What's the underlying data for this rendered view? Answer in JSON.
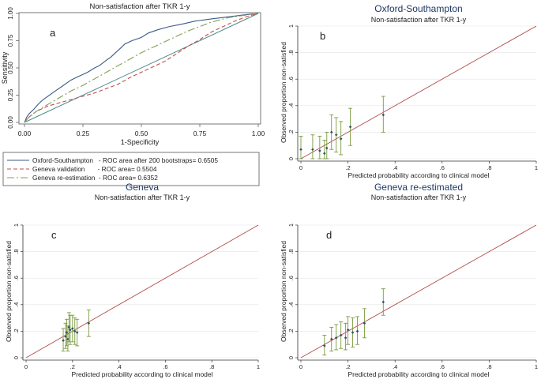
{
  "chart_data": [
    {
      "id": "a",
      "type": "line",
      "panel_label": "a",
      "title": "Non-satisfaction after TKR 1-y",
      "xlabel": "1-Specificity",
      "ylabel": "Sensitivity",
      "xlim": [
        0,
        1
      ],
      "ylim": [
        0,
        1
      ],
      "xticks": [
        0,
        0.25,
        0.5,
        0.75,
        1
      ],
      "xtick_labels": [
        "0.00",
        "0.25",
        "0.50",
        "0.75",
        "1.00"
      ],
      "yticks": [
        0,
        0.25,
        0.5,
        0.75,
        1
      ],
      "ytick_labels": [
        "0.00",
        "0.25",
        "0.50",
        "0.75",
        "1.00"
      ],
      "reference_line": [
        [
          0,
          0
        ],
        [
          1,
          1
        ]
      ],
      "series": [
        {
          "name": "Oxford-Southampton",
          "legend_label": "Oxford-Southampton   - ROC area after 200 bootstraps= 0.6505",
          "color": "#3d5a85",
          "dash": "solid",
          "points": [
            [
              0,
              0
            ],
            [
              0.01,
              0.05
            ],
            [
              0.02,
              0.08
            ],
            [
              0.04,
              0.12
            ],
            [
              0.06,
              0.17
            ],
            [
              0.08,
              0.21
            ],
            [
              0.1,
              0.24
            ],
            [
              0.12,
              0.27
            ],
            [
              0.14,
              0.3
            ],
            [
              0.16,
              0.33
            ],
            [
              0.18,
              0.36
            ],
            [
              0.2,
              0.39
            ],
            [
              0.22,
              0.41
            ],
            [
              0.25,
              0.44
            ],
            [
              0.27,
              0.46
            ],
            [
              0.3,
              0.5
            ],
            [
              0.32,
              0.52
            ],
            [
              0.35,
              0.57
            ],
            [
              0.37,
              0.6
            ],
            [
              0.39,
              0.64
            ],
            [
              0.41,
              0.68
            ],
            [
              0.43,
              0.72
            ],
            [
              0.46,
              0.75
            ],
            [
              0.5,
              0.78
            ],
            [
              0.53,
              0.82
            ],
            [
              0.57,
              0.85
            ],
            [
              0.62,
              0.88
            ],
            [
              0.67,
              0.9
            ],
            [
              0.73,
              0.93
            ],
            [
              0.8,
              0.95
            ],
            [
              0.88,
              0.97
            ],
            [
              0.95,
              0.99
            ],
            [
              1,
              1
            ]
          ]
        },
        {
          "name": "Geneva validation",
          "legend_label": "Geneva validation       - ROC area= 0.5504",
          "color": "#c0504d",
          "dash": "5,3",
          "points": [
            [
              0,
              0
            ],
            [
              0.02,
              0.05
            ],
            [
              0.05,
              0.1
            ],
            [
              0.1,
              0.15
            ],
            [
              0.15,
              0.18
            ],
            [
              0.2,
              0.21
            ],
            [
              0.25,
              0.24
            ],
            [
              0.3,
              0.27
            ],
            [
              0.35,
              0.31
            ],
            [
              0.4,
              0.35
            ],
            [
              0.45,
              0.41
            ],
            [
              0.5,
              0.46
            ],
            [
              0.55,
              0.51
            ],
            [
              0.6,
              0.56
            ],
            [
              0.65,
              0.63
            ],
            [
              0.7,
              0.7
            ],
            [
              0.75,
              0.76
            ],
            [
              0.8,
              0.83
            ],
            [
              0.85,
              0.88
            ],
            [
              0.9,
              0.93
            ],
            [
              0.95,
              0.97
            ],
            [
              1,
              1
            ]
          ]
        },
        {
          "name": "Geneva re-estimation",
          "legend_label": "Geneva re-estimation  - ROC area= 0.6352",
          "color": "#7f9f52",
          "dash": "9,3,2,3",
          "points": [
            [
              0,
              0
            ],
            [
              0.02,
              0.05
            ],
            [
              0.05,
              0.1
            ],
            [
              0.08,
              0.14
            ],
            [
              0.12,
              0.19
            ],
            [
              0.16,
              0.24
            ],
            [
              0.2,
              0.29
            ],
            [
              0.25,
              0.34
            ],
            [
              0.3,
              0.4
            ],
            [
              0.35,
              0.46
            ],
            [
              0.4,
              0.52
            ],
            [
              0.45,
              0.58
            ],
            [
              0.5,
              0.64
            ],
            [
              0.55,
              0.69
            ],
            [
              0.6,
              0.74
            ],
            [
              0.65,
              0.79
            ],
            [
              0.7,
              0.84
            ],
            [
              0.75,
              0.88
            ],
            [
              0.8,
              0.92
            ],
            [
              0.87,
              0.96
            ],
            [
              0.93,
              0.98
            ],
            [
              1,
              1
            ]
          ]
        }
      ]
    },
    {
      "id": "b",
      "type": "scatter",
      "panel_label": "b",
      "title": "Oxford-Southampton",
      "subtitle": "Non-satisfaction after TKR 1-y",
      "xlabel": "Predicted probability according to clinical model",
      "ylabel": "Observed proportion non-satisfied",
      "xlim": [
        0,
        1
      ],
      "ylim": [
        0,
        1
      ],
      "xticks": [
        0,
        0.2,
        0.4,
        0.6,
        0.8,
        1
      ],
      "xtick_labels": [
        "0",
        ".2",
        ".4",
        ".6",
        ".8",
        "1"
      ],
      "yticks": [
        0,
        0.2,
        0.4,
        0.6,
        0.8,
        1
      ],
      "ytick_labels": [
        "0",
        ".2",
        ".4",
        ".6",
        ".8",
        "1"
      ],
      "reference_line": [
        [
          0,
          0
        ],
        [
          1,
          1
        ]
      ],
      "points": [
        {
          "x": 0.0,
          "y": 0.07,
          "lo": 0.0,
          "hi": 0.17
        },
        {
          "x": 0.05,
          "y": 0.07,
          "lo": 0.0,
          "hi": 0.18
        },
        {
          "x": 0.08,
          "y": 0.06,
          "lo": 0.0,
          "hi": 0.17
        },
        {
          "x": 0.1,
          "y": 0.04,
          "lo": 0.0,
          "hi": 0.14
        },
        {
          "x": 0.11,
          "y": 0.08,
          "lo": 0.0,
          "hi": 0.2
        },
        {
          "x": 0.13,
          "y": 0.2,
          "lo": 0.07,
          "hi": 0.33
        },
        {
          "x": 0.15,
          "y": 0.18,
          "lo": 0.05,
          "hi": 0.31
        },
        {
          "x": 0.17,
          "y": 0.15,
          "lo": 0.03,
          "hi": 0.28
        },
        {
          "x": 0.21,
          "y": 0.24,
          "lo": 0.1,
          "hi": 0.38
        },
        {
          "x": 0.35,
          "y": 0.33,
          "lo": 0.2,
          "hi": 0.47
        }
      ]
    },
    {
      "id": "c",
      "type": "scatter",
      "panel_label": "c",
      "title": "Geneva",
      "subtitle": "Non-satisfaction after TKR 1-y",
      "xlabel": "Predicted probability according to clinical model",
      "ylabel": "Observed proportion non-satisfied",
      "xlim": [
        0,
        1
      ],
      "ylim": [
        0,
        1
      ],
      "xticks": [
        0,
        0.2,
        0.4,
        0.6,
        0.8,
        1
      ],
      "xtick_labels": [
        "0",
        ".2",
        ".4",
        ".6",
        ".8",
        "1"
      ],
      "yticks": [
        0,
        0.2,
        0.4,
        0.6,
        0.8,
        1
      ],
      "ytick_labels": [
        "0",
        ".2",
        ".4",
        ".6",
        ".8",
        "1"
      ],
      "reference_line": [
        [
          0,
          0
        ],
        [
          1,
          1
        ]
      ],
      "points": [
        {
          "x": 0.16,
          "y": 0.13,
          "lo": 0.05,
          "hi": 0.22
        },
        {
          "x": 0.17,
          "y": 0.16,
          "lo": 0.07,
          "hi": 0.26
        },
        {
          "x": 0.175,
          "y": 0.19,
          "lo": 0.09,
          "hi": 0.29
        },
        {
          "x": 0.18,
          "y": 0.14,
          "lo": 0.05,
          "hi": 0.24
        },
        {
          "x": 0.185,
          "y": 0.23,
          "lo": 0.12,
          "hi": 0.34
        },
        {
          "x": 0.19,
          "y": 0.21,
          "lo": 0.1,
          "hi": 0.32
        },
        {
          "x": 0.2,
          "y": 0.22,
          "lo": 0.12,
          "hi": 0.32
        },
        {
          "x": 0.21,
          "y": 0.2,
          "lo": 0.1,
          "hi": 0.3
        },
        {
          "x": 0.22,
          "y": 0.19,
          "lo": 0.09,
          "hi": 0.29
        },
        {
          "x": 0.27,
          "y": 0.26,
          "lo": 0.16,
          "hi": 0.36
        }
      ]
    },
    {
      "id": "d",
      "type": "scatter",
      "panel_label": "d",
      "title": "Geneva re-estimated",
      "subtitle": "Non-satisfaction after TKR 1-y",
      "xlabel": "Predicted probability according to clinical model",
      "ylabel": "Observed proportion non-satisfied",
      "xlim": [
        0,
        1
      ],
      "ylim": [
        0,
        1
      ],
      "xticks": [
        0,
        0.2,
        0.4,
        0.6,
        0.8,
        1
      ],
      "xtick_labels": [
        "0",
        ".2",
        ".4",
        ".6",
        ".8",
        "1"
      ],
      "yticks": [
        0,
        0.2,
        0.4,
        0.6,
        0.8,
        1
      ],
      "ytick_labels": [
        "0",
        ".2",
        ".4",
        ".6",
        ".8",
        "1"
      ],
      "reference_line": [
        [
          0,
          0
        ],
        [
          1,
          1
        ]
      ],
      "points": [
        {
          "x": 0.1,
          "y": 0.09,
          "lo": 0.02,
          "hi": 0.17
        },
        {
          "x": 0.13,
          "y": 0.14,
          "lo": 0.05,
          "hi": 0.23
        },
        {
          "x": 0.15,
          "y": 0.15,
          "lo": 0.06,
          "hi": 0.25
        },
        {
          "x": 0.17,
          "y": 0.17,
          "lo": 0.07,
          "hi": 0.27
        },
        {
          "x": 0.19,
          "y": 0.15,
          "lo": 0.06,
          "hi": 0.26
        },
        {
          "x": 0.2,
          "y": 0.21,
          "lo": 0.1,
          "hi": 0.31
        },
        {
          "x": 0.22,
          "y": 0.19,
          "lo": 0.08,
          "hi": 0.3
        },
        {
          "x": 0.24,
          "y": 0.2,
          "lo": 0.1,
          "hi": 0.31
        },
        {
          "x": 0.27,
          "y": 0.26,
          "lo": 0.15,
          "hi": 0.37
        },
        {
          "x": 0.35,
          "y": 0.42,
          "lo": 0.32,
          "hi": 0.52
        }
      ]
    }
  ],
  "colors": {
    "title_blue": "#1f3864",
    "diagonal": "#b2494b",
    "roc_reference": "#4f8a8b",
    "marker": "#2e5468",
    "error_bar": "#7a9a3f",
    "axis": "#333333"
  }
}
